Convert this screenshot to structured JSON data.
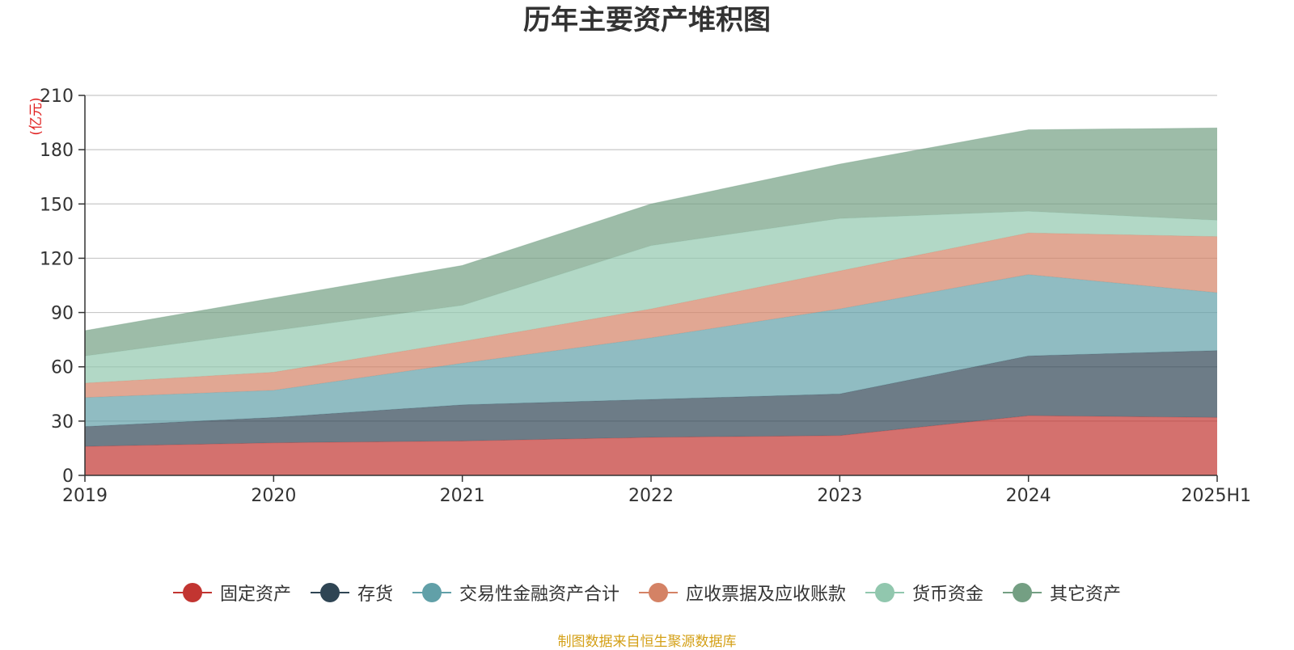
{
  "chart_data": {
    "type": "area",
    "title": "历年主要资产堆积图",
    "unit": "(亿元)",
    "categories": [
      "2019",
      "2020",
      "2021",
      "2022",
      "2023",
      "2024",
      "2025H1"
    ],
    "ylim": [
      0,
      210
    ],
    "yticks": [
      0,
      30,
      60,
      90,
      120,
      150,
      180,
      210
    ],
    "stacked": true,
    "grid": true,
    "legend_position": "bottom",
    "series": [
      {
        "name": "固定资产",
        "color": "#c23531",
        "values": [
          16,
          18,
          19,
          21,
          22,
          33,
          32
        ]
      },
      {
        "name": "存货",
        "color": "#2f4554",
        "values": [
          11,
          14,
          20,
          21,
          23,
          33,
          37
        ]
      },
      {
        "name": "交易性金融资产合计",
        "color": "#61a0a8",
        "values": [
          16,
          15,
          23,
          34,
          47,
          45,
          32
        ]
      },
      {
        "name": "应收票据及应收账款",
        "color": "#d48265",
        "values": [
          8,
          10,
          12,
          16,
          21,
          23,
          31
        ]
      },
      {
        "name": "货币资金",
        "color": "#91c7ae",
        "values": [
          15,
          23,
          20,
          35,
          29,
          12,
          9
        ]
      },
      {
        "name": "其它资产",
        "color": "#749f83",
        "values": [
          14,
          18,
          22,
          23,
          30,
          45,
          51
        ]
      }
    ]
  },
  "source_text": "制图数据来自恒生聚源数据库"
}
